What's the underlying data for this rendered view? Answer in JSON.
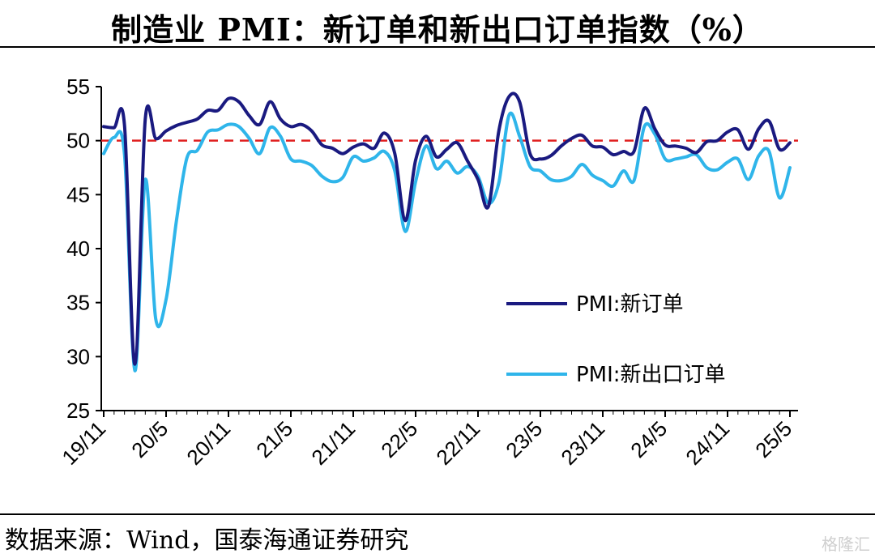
{
  "chart_data": {
    "type": "line",
    "title": "制造业 PMI：新订单和新出口订单指数（%）",
    "source": "数据来源：Wind，国泰海通证券研究",
    "watermark": "格隆汇",
    "x_tick_labels": [
      "19/11",
      "20/5",
      "20/11",
      "21/5",
      "21/11",
      "22/5",
      "22/11",
      "23/5",
      "23/11",
      "24/5",
      "24/11",
      "25/5"
    ],
    "x": [
      "19/11",
      "19/12",
      "20/1",
      "20/2",
      "20/3",
      "20/4",
      "20/5",
      "20/6",
      "20/7",
      "20/8",
      "20/9",
      "20/10",
      "20/11",
      "20/12",
      "21/1",
      "21/2",
      "21/3",
      "21/4",
      "21/5",
      "21/6",
      "21/7",
      "21/8",
      "21/9",
      "21/10",
      "21/11",
      "21/12",
      "22/1",
      "22/2",
      "22/3",
      "22/4",
      "22/5",
      "22/6",
      "22/7",
      "22/8",
      "22/9",
      "22/10",
      "22/11",
      "22/12",
      "23/1",
      "23/2",
      "23/3",
      "23/4",
      "23/5",
      "23/6",
      "23/7",
      "23/8",
      "23/9",
      "23/10",
      "23/11",
      "23/12",
      "24/1",
      "24/2",
      "24/3",
      "24/4",
      "24/5",
      "24/6",
      "24/7",
      "24/8",
      "24/9",
      "24/10",
      "24/11",
      "24/12",
      "25/1",
      "25/2",
      "25/3",
      "25/4",
      "25/5"
    ],
    "ylim": [
      25,
      55
    ],
    "yticks": [
      25,
      30,
      35,
      40,
      45,
      50,
      55
    ],
    "reference_line": {
      "value": 50,
      "color": "#e02020",
      "style": "dashed"
    },
    "legend_position": "right-center",
    "series": [
      {
        "name": "PMI:新订单",
        "color": "#1a1a80",
        "values": [
          51.3,
          51.2,
          51.4,
          29.3,
          52.0,
          50.2,
          50.9,
          51.4,
          51.7,
          52.0,
          52.8,
          52.8,
          53.9,
          53.6,
          52.3,
          51.5,
          53.6,
          52.0,
          51.3,
          51.5,
          50.9,
          49.6,
          49.3,
          48.8,
          49.4,
          49.7,
          49.3,
          50.7,
          48.8,
          42.6,
          48.2,
          50.4,
          48.5,
          49.2,
          49.8,
          48.1,
          46.4,
          43.9,
          50.9,
          54.1,
          53.6,
          48.8,
          48.3,
          48.6,
          49.5,
          50.2,
          50.5,
          49.5,
          49.4,
          48.7,
          49.0,
          49.0,
          53.0,
          51.1,
          49.6,
          49.5,
          49.3,
          48.9,
          49.9,
          50.0,
          50.8,
          51.0,
          49.2,
          51.1,
          51.8,
          49.2,
          49.8
        ]
      },
      {
        "name": "PMI:新出口订单",
        "color": "#2fb5ea",
        "values": [
          48.8,
          50.3,
          48.7,
          28.7,
          46.4,
          33.5,
          35.3,
          42.6,
          48.4,
          49.1,
          50.8,
          51.0,
          51.5,
          51.3,
          50.2,
          48.8,
          51.2,
          50.4,
          48.3,
          48.1,
          47.7,
          46.7,
          46.2,
          46.6,
          48.5,
          48.1,
          48.4,
          49.0,
          47.2,
          41.6,
          46.2,
          49.5,
          47.4,
          48.1,
          47.0,
          47.6,
          46.7,
          44.2,
          46.1,
          52.4,
          50.4,
          47.6,
          47.2,
          46.4,
          46.3,
          46.7,
          47.8,
          46.8,
          46.3,
          45.8,
          47.2,
          46.3,
          51.3,
          50.6,
          48.3,
          48.3,
          48.5,
          48.7,
          47.5,
          47.3,
          48.0,
          48.3,
          46.4,
          48.6,
          49.0,
          44.7,
          47.5
        ]
      }
    ]
  }
}
